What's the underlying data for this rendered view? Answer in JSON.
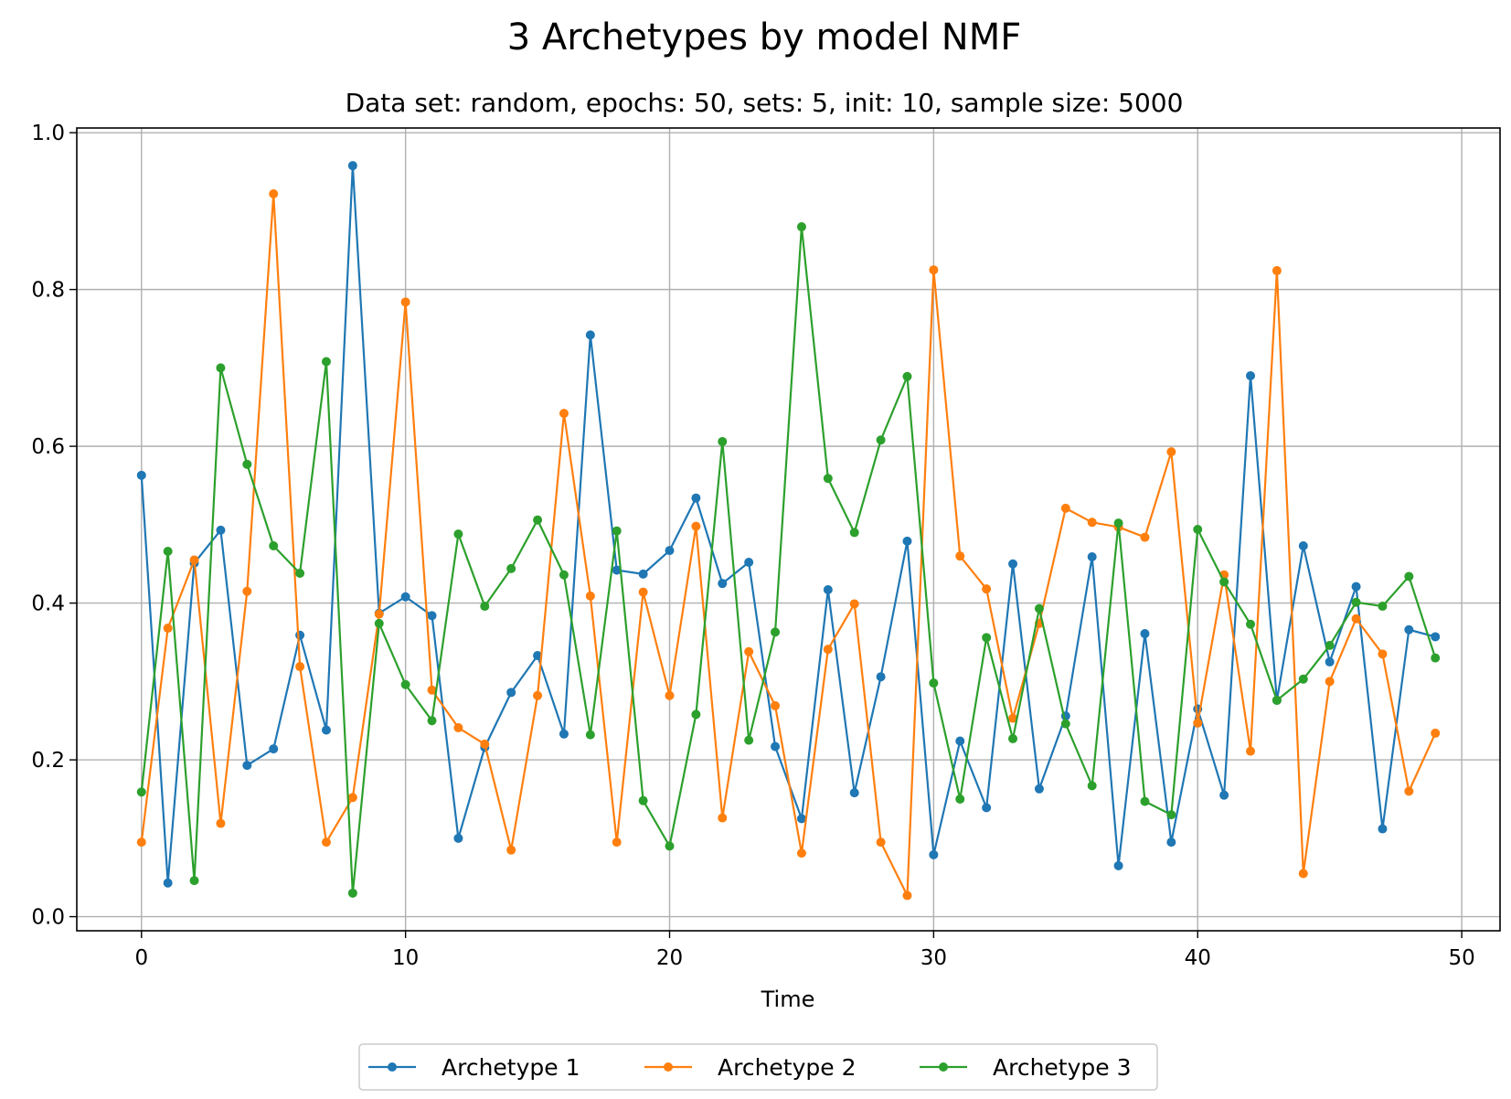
{
  "chart_data": {
    "type": "line",
    "title": "3 Archetypes by model NMF",
    "subtitle": "Data set: random, epochs: 50, sets: 5, init: 10, sample size: 5000",
    "xlabel": "Time",
    "ylabel": "",
    "xlim": [
      -2.45,
      51.45
    ],
    "ylim": [
      -0.018,
      1.006
    ],
    "xticks": [
      0,
      10,
      20,
      30,
      40,
      50
    ],
    "yticks": [
      0.0,
      0.2,
      0.4,
      0.6,
      0.8,
      1.0
    ],
    "xtick_labels": [
      "0",
      "10",
      "20",
      "30",
      "40",
      "50"
    ],
    "ytick_labels": [
      "0.0",
      "0.2",
      "0.4",
      "0.6",
      "0.8",
      "1.0"
    ],
    "grid": true,
    "legend_position": "bottom-center",
    "x": [
      0,
      1,
      2,
      3,
      4,
      5,
      6,
      7,
      8,
      9,
      10,
      11,
      12,
      13,
      14,
      15,
      16,
      17,
      18,
      19,
      20,
      21,
      22,
      23,
      24,
      25,
      26,
      27,
      28,
      29,
      30,
      31,
      32,
      33,
      34,
      35,
      36,
      37,
      38,
      39,
      40,
      41,
      42,
      43,
      44,
      45,
      46,
      47,
      48,
      49
    ],
    "series": [
      {
        "name": "Archetype 1",
        "color": "#1f77b4",
        "values": [
          0.563,
          0.043,
          0.451,
          0.493,
          0.193,
          0.214,
          0.359,
          0.238,
          0.958,
          0.387,
          0.408,
          0.384,
          0.1,
          0.216,
          0.286,
          0.333,
          0.233,
          0.742,
          0.442,
          0.437,
          0.467,
          0.534,
          0.425,
          0.452,
          0.217,
          0.125,
          0.417,
          0.158,
          0.306,
          0.479,
          0.079,
          0.224,
          0.139,
          0.45,
          0.163,
          0.256,
          0.459,
          0.065,
          0.361,
          0.095,
          0.265,
          0.155,
          0.69,
          0.276,
          0.473,
          0.325,
          0.421,
          0.112,
          0.366,
          0.357
        ]
      },
      {
        "name": "Archetype 2",
        "color": "#ff7f0e",
        "values": [
          0.095,
          0.368,
          0.455,
          0.119,
          0.415,
          0.922,
          0.319,
          0.095,
          0.152,
          0.386,
          0.784,
          0.289,
          0.241,
          0.22,
          0.085,
          0.282,
          0.642,
          0.409,
          0.095,
          0.414,
          0.282,
          0.498,
          0.126,
          0.338,
          0.269,
          0.081,
          0.341,
          0.399,
          0.095,
          0.027,
          0.825,
          0.46,
          0.418,
          0.253,
          0.374,
          0.521,
          0.503,
          0.497,
          0.484,
          0.593,
          0.247,
          0.436,
          0.211,
          0.824,
          0.055,
          0.3,
          0.38,
          0.335,
          0.16,
          0.234
        ]
      },
      {
        "name": "Archetype 3",
        "color": "#2ca02c",
        "values": [
          0.159,
          0.466,
          0.046,
          0.7,
          0.577,
          0.473,
          0.438,
          0.708,
          0.03,
          0.374,
          0.296,
          0.25,
          0.488,
          0.396,
          0.444,
          0.506,
          0.436,
          0.232,
          0.492,
          0.148,
          0.09,
          0.258,
          0.606,
          0.225,
          0.363,
          0.88,
          0.559,
          0.49,
          0.608,
          0.689,
          0.298,
          0.15,
          0.356,
          0.227,
          0.393,
          0.246,
          0.167,
          0.502,
          0.147,
          0.13,
          0.494,
          0.427,
          0.373,
          0.276,
          0.303,
          0.346,
          0.401,
          0.396,
          0.434,
          0.33
        ]
      }
    ]
  }
}
